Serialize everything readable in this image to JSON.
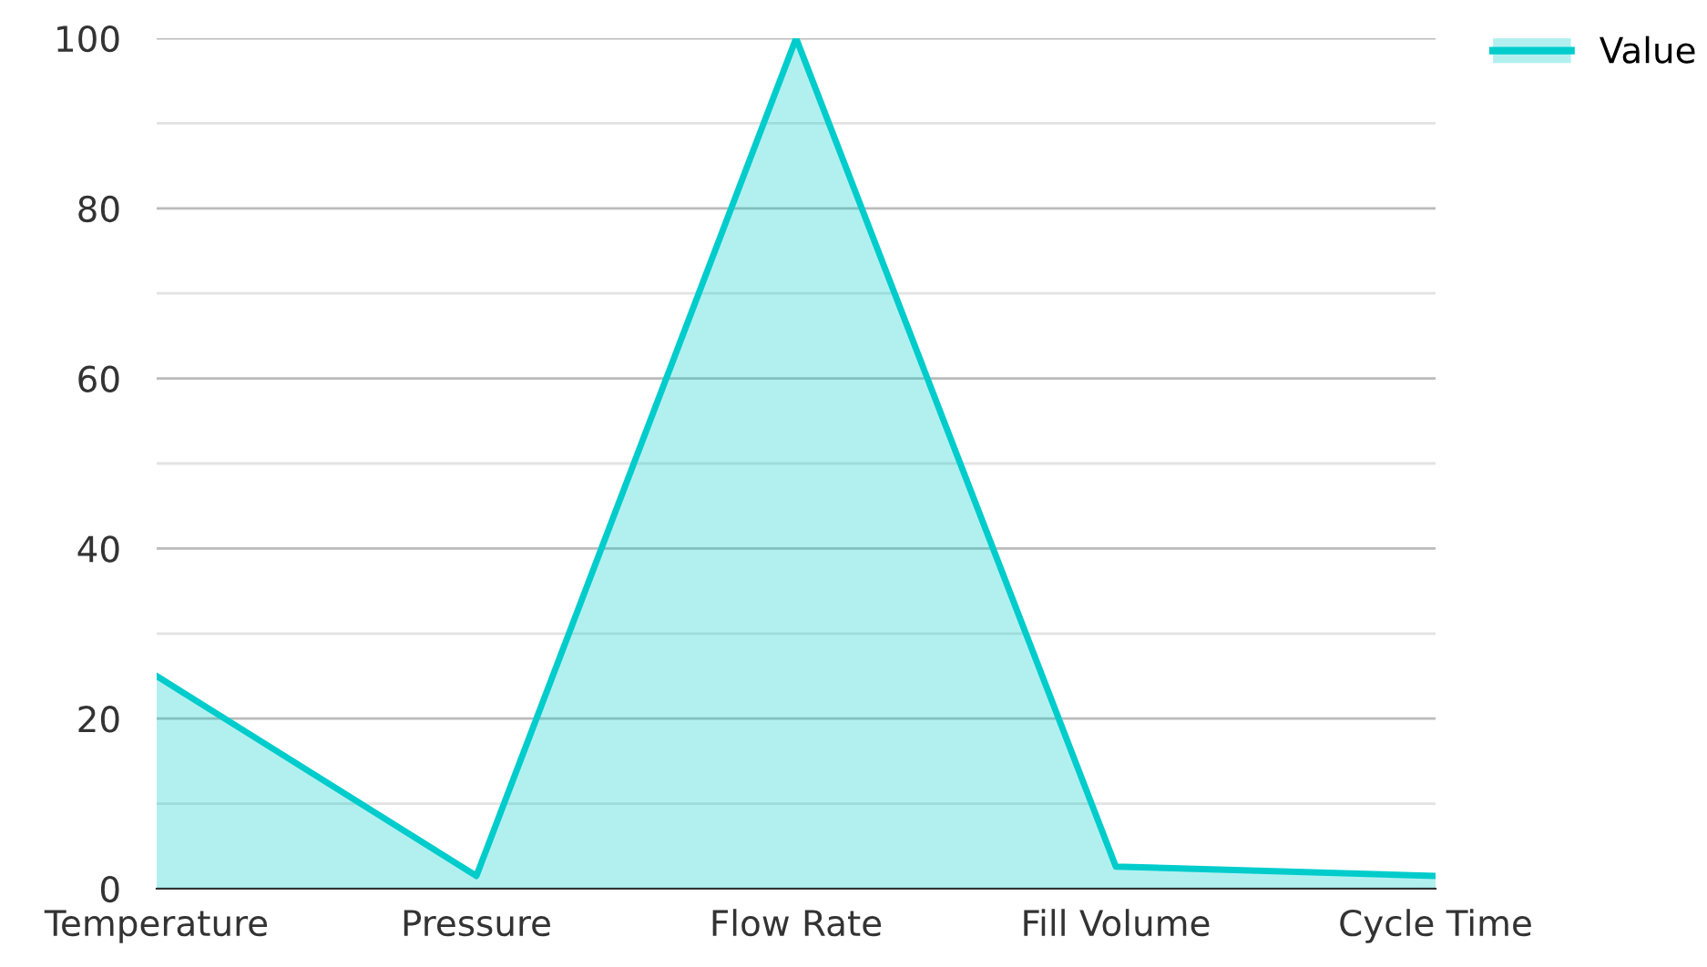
{
  "chart_data": {
    "type": "area",
    "categories": [
      "Temperature",
      "Pressure",
      "Flow Rate",
      "Fill Volume",
      "Cycle Time"
    ],
    "series": [
      {
        "name": "Value",
        "color": "#00cccc",
        "values": [
          25,
          1.5,
          100,
          2.6,
          1.5
        ]
      }
    ],
    "ylim": [
      0,
      100
    ],
    "yticks": [
      0,
      {
        "value": 10,
        "label": null
      },
      20,
      {
        "value": 30,
        "label": null
      },
      40,
      {
        "value": 50,
        "label": null
      },
      60,
      {
        "value": 70,
        "label": null
      },
      80,
      {
        "value": 90,
        "label": null
      },
      100
    ],
    "grid": "y",
    "legend": "top right"
  }
}
